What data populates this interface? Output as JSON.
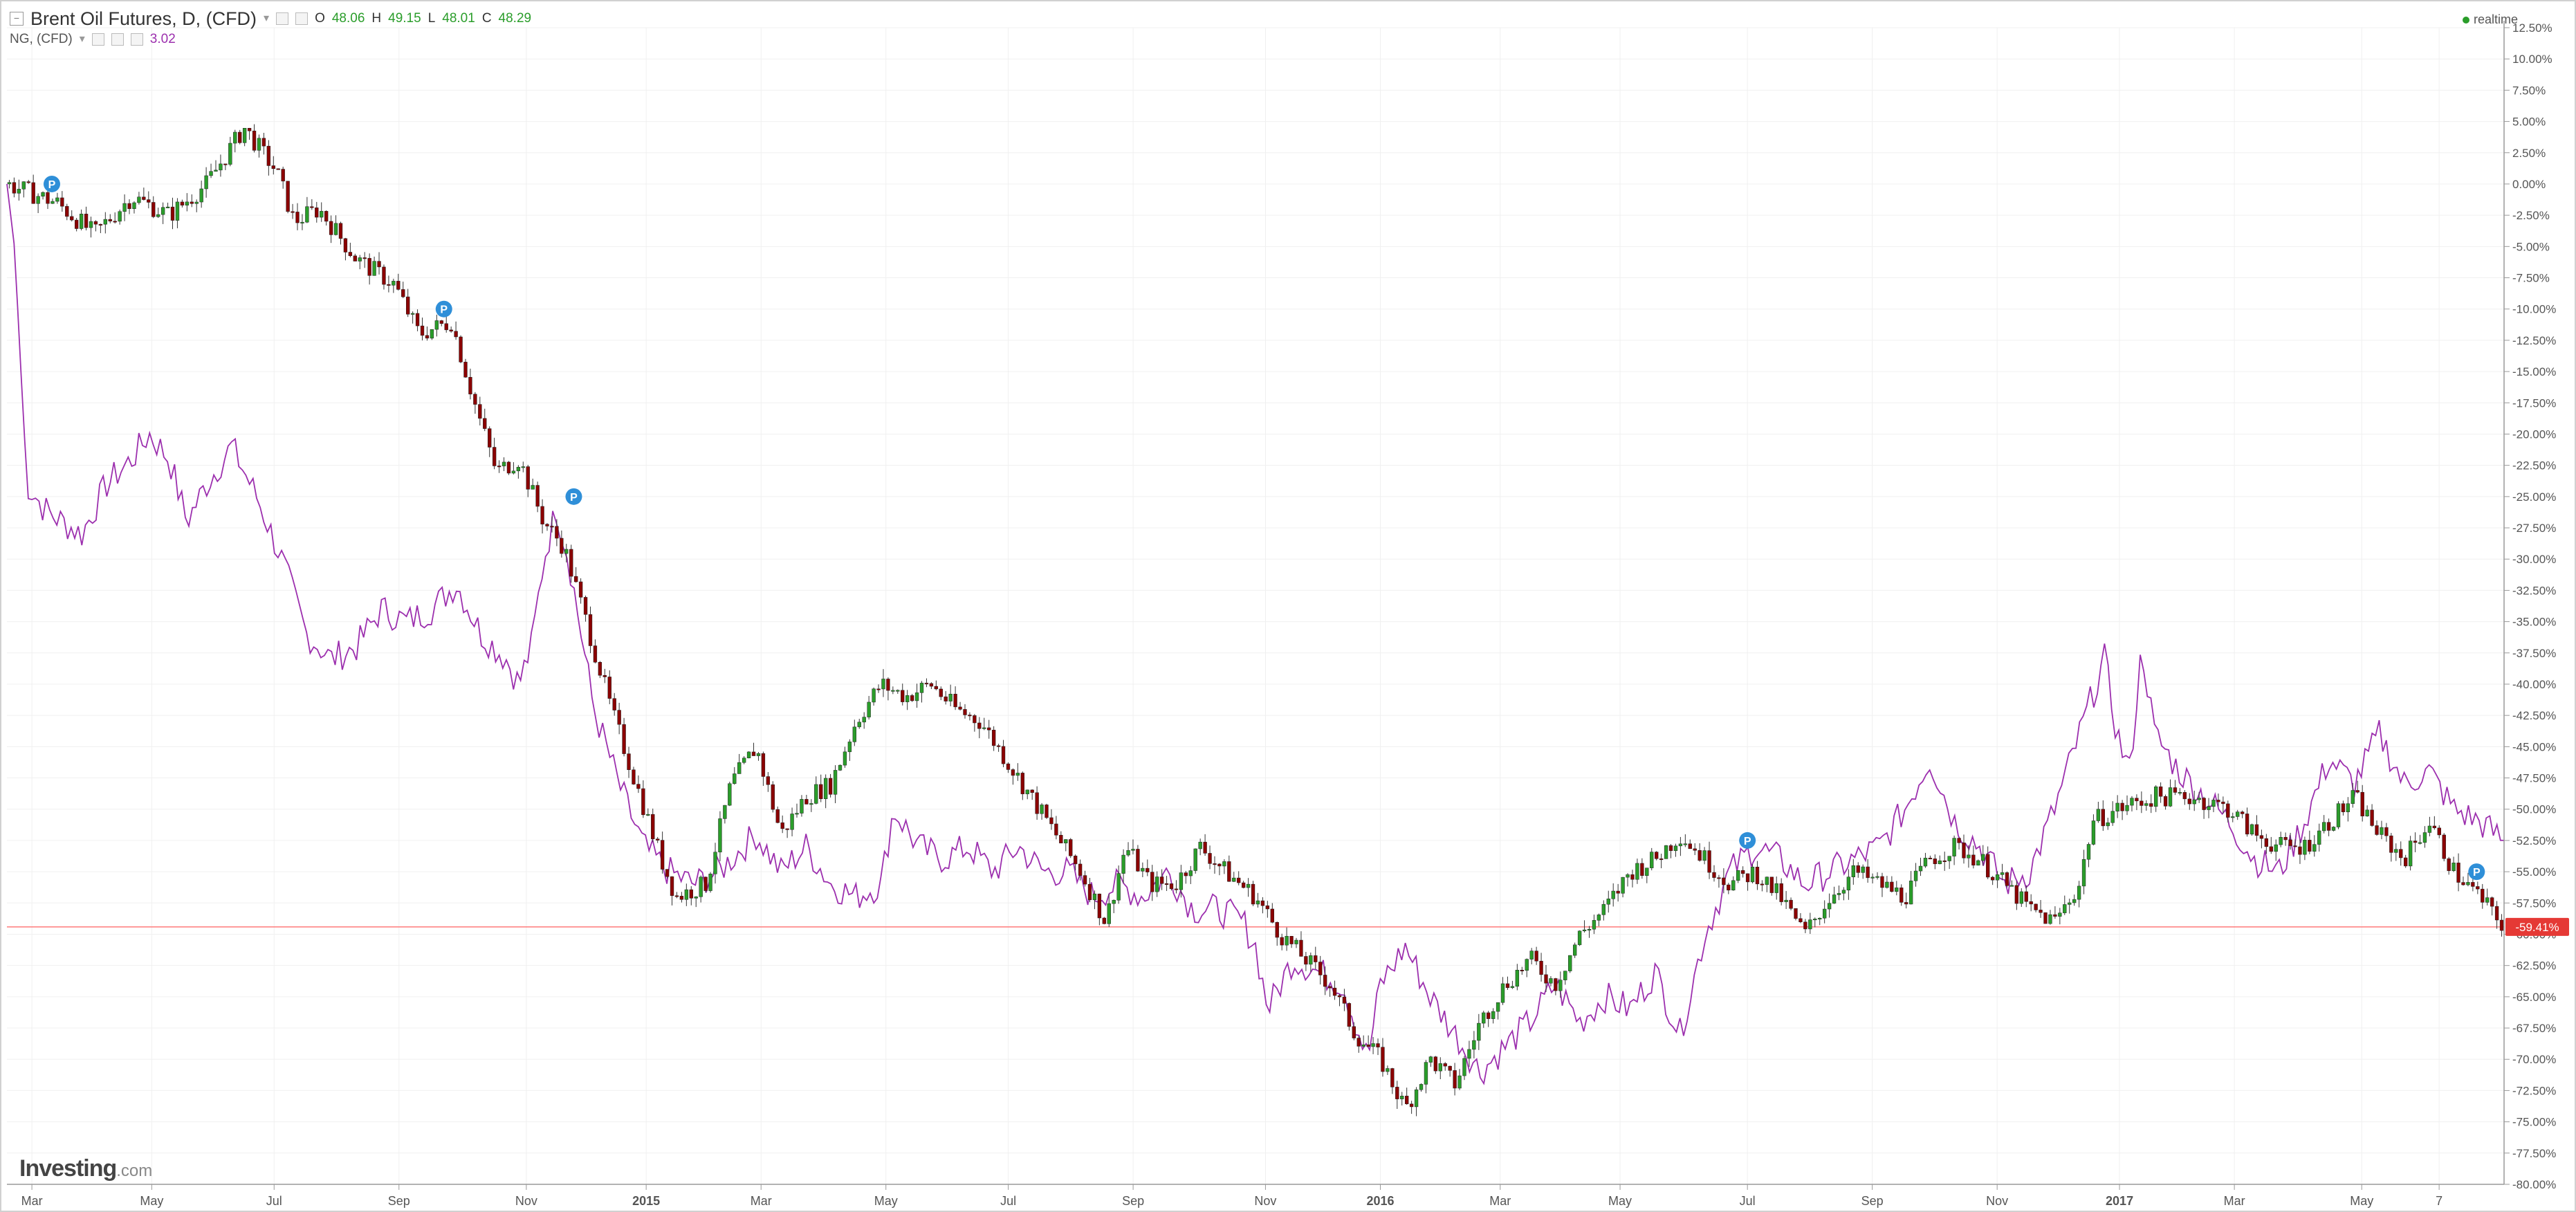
{
  "header": {
    "title": "Brent Oil Futures, D, (CFD)",
    "ohlc": [
      {
        "key": "O",
        "value": "48.06"
      },
      {
        "key": "H",
        "value": "49.15"
      },
      {
        "key": "L",
        "value": "48.01"
      },
      {
        "key": "C",
        "value": "48.29"
      }
    ],
    "compare_symbol": "NG, (CFD)",
    "compare_value": "3.02",
    "realtime_label": "realtime"
  },
  "brand": {
    "name": "Investing",
    "domain": ".com"
  },
  "colors": {
    "up": "#2a9d2a",
    "down": "#8b0000",
    "compare_line": "#9c2fae",
    "last_price_line": "#ff7a7a",
    "last_price_badge": "#e53935",
    "marker": "#2f8fd8"
  },
  "icons": {
    "marker": "circle-P-icon",
    "collapse": "minus-box-icon"
  },
  "chart_data": {
    "type": "line",
    "scale": "percent",
    "ylim": [
      -80,
      12.5
    ],
    "y_ticks": [
      "12.50%",
      "10.00%",
      "7.50%",
      "5.00%",
      "2.50%",
      "0.00%",
      "-2.50%",
      "-5.00%",
      "-7.50%",
      "-10.00%",
      "-12.50%",
      "-15.00%",
      "-17.50%",
      "-20.00%",
      "-22.50%",
      "-25.00%",
      "-27.50%",
      "-30.00%",
      "-32.50%",
      "-35.00%",
      "-37.50%",
      "-40.00%",
      "-42.50%",
      "-45.00%",
      "-47.50%",
      "-50.00%",
      "-52.50%",
      "-55.00%",
      "-57.50%",
      "-60.00%",
      "-62.50%",
      "-65.00%",
      "-67.50%",
      "-70.00%",
      "-72.50%",
      "-75.00%",
      "-77.50%",
      "-80.00%"
    ],
    "x_ticks": [
      {
        "label": "Mar",
        "t": 0.01
      },
      {
        "label": "May",
        "t": 0.058
      },
      {
        "label": "Jul",
        "t": 0.107
      },
      {
        "label": "Sep",
        "t": 0.157
      },
      {
        "label": "Nov",
        "t": 0.208
      },
      {
        "label": "2015",
        "t": 0.256
      },
      {
        "label": "Mar",
        "t": 0.302
      },
      {
        "label": "May",
        "t": 0.352
      },
      {
        "label": "Jul",
        "t": 0.401
      },
      {
        "label": "Sep",
        "t": 0.451
      },
      {
        "label": "Nov",
        "t": 0.504
      },
      {
        "label": "2016",
        "t": 0.55
      },
      {
        "label": "Mar",
        "t": 0.598
      },
      {
        "label": "May",
        "t": 0.646
      },
      {
        "label": "Jul",
        "t": 0.697
      },
      {
        "label": "Sep",
        "t": 0.747
      },
      {
        "label": "Nov",
        "t": 0.797
      },
      {
        "label": "2017",
        "t": 0.846
      },
      {
        "label": "Mar",
        "t": 0.892
      },
      {
        "label": "May",
        "t": 0.943
      },
      {
        "label": "7",
        "t": 0.974
      }
    ],
    "last_value": -59.41,
    "last_value_label": "-59.41%",
    "series": [
      {
        "name": "Brent Oil Futures, D, (CFD)",
        "style": "candlestick",
        "points": [
          [
            0.0,
            0
          ],
          [
            0.02,
            -1.5
          ],
          [
            0.035,
            -4
          ],
          [
            0.05,
            -1
          ],
          [
            0.065,
            -2.5
          ],
          [
            0.08,
            0
          ],
          [
            0.095,
            4.5
          ],
          [
            0.108,
            1
          ],
          [
            0.115,
            -3
          ],
          [
            0.125,
            -2
          ],
          [
            0.14,
            -6
          ],
          [
            0.155,
            -8
          ],
          [
            0.165,
            -12
          ],
          [
            0.178,
            -11
          ],
          [
            0.188,
            -18
          ],
          [
            0.196,
            -23
          ],
          [
            0.205,
            -22
          ],
          [
            0.215,
            -27
          ],
          [
            0.223,
            -29
          ],
          [
            0.232,
            -35
          ],
          [
            0.242,
            -42
          ],
          [
            0.252,
            -48
          ],
          [
            0.262,
            -54
          ],
          [
            0.268,
            -57
          ],
          [
            0.28,
            -56
          ],
          [
            0.29,
            -48
          ],
          [
            0.3,
            -45
          ],
          [
            0.31,
            -52
          ],
          [
            0.32,
            -49
          ],
          [
            0.33,
            -48
          ],
          [
            0.34,
            -43
          ],
          [
            0.35,
            -40
          ],
          [
            0.36,
            -41
          ],
          [
            0.37,
            -40
          ],
          [
            0.38,
            -42
          ],
          [
            0.39,
            -43
          ],
          [
            0.4,
            -46
          ],
          [
            0.41,
            -49
          ],
          [
            0.42,
            -52
          ],
          [
            0.43,
            -55
          ],
          [
            0.44,
            -59
          ],
          [
            0.448,
            -53
          ],
          [
            0.458,
            -56
          ],
          [
            0.468,
            -56
          ],
          [
            0.478,
            -53
          ],
          [
            0.488,
            -55
          ],
          [
            0.5,
            -57
          ],
          [
            0.51,
            -60
          ],
          [
            0.52,
            -62
          ],
          [
            0.53,
            -64
          ],
          [
            0.54,
            -68
          ],
          [
            0.55,
            -70
          ],
          [
            0.56,
            -74
          ],
          [
            0.57,
            -70
          ],
          [
            0.58,
            -72
          ],
          [
            0.59,
            -67
          ],
          [
            0.6,
            -64
          ],
          [
            0.61,
            -62
          ],
          [
            0.62,
            -64
          ],
          [
            0.63,
            -60
          ],
          [
            0.64,
            -58
          ],
          [
            0.65,
            -55
          ],
          [
            0.66,
            -54
          ],
          [
            0.67,
            -52
          ],
          [
            0.68,
            -54
          ],
          [
            0.69,
            -56
          ],
          [
            0.7,
            -55
          ],
          [
            0.71,
            -57
          ],
          [
            0.72,
            -60
          ],
          [
            0.73,
            -57
          ],
          [
            0.74,
            -55
          ],
          [
            0.75,
            -56
          ],
          [
            0.76,
            -57
          ],
          [
            0.77,
            -54
          ],
          [
            0.78,
            -53
          ],
          [
            0.79,
            -54
          ],
          [
            0.8,
            -56
          ],
          [
            0.81,
            -58
          ],
          [
            0.82,
            -59
          ],
          [
            0.83,
            -56
          ],
          [
            0.835,
            -51
          ],
          [
            0.845,
            -50
          ],
          [
            0.86,
            -49
          ],
          [
            0.875,
            -49
          ],
          [
            0.89,
            -50
          ],
          [
            0.9,
            -52
          ],
          [
            0.91,
            -53
          ],
          [
            0.92,
            -53
          ],
          [
            0.93,
            -51
          ],
          [
            0.94,
            -49
          ],
          [
            0.95,
            -52
          ],
          [
            0.96,
            -54
          ],
          [
            0.97,
            -51
          ],
          [
            0.98,
            -55
          ],
          [
            0.99,
            -57
          ],
          [
            1.0,
            -59.41
          ]
        ]
      },
      {
        "name": "NG, (CFD)",
        "value": "3.02",
        "style": "line",
        "points": [
          [
            0.0,
            0
          ],
          [
            0.003,
            -5
          ],
          [
            0.008,
            -24
          ],
          [
            0.015,
            -26
          ],
          [
            0.022,
            -27
          ],
          [
            0.03,
            -28
          ],
          [
            0.04,
            -24
          ],
          [
            0.05,
            -22
          ],
          [
            0.057,
            -20
          ],
          [
            0.065,
            -22
          ],
          [
            0.072,
            -27
          ],
          [
            0.08,
            -24
          ],
          [
            0.09,
            -21
          ],
          [
            0.1,
            -25
          ],
          [
            0.11,
            -30
          ],
          [
            0.12,
            -36
          ],
          [
            0.13,
            -38
          ],
          [
            0.14,
            -37
          ],
          [
            0.15,
            -34
          ],
          [
            0.16,
            -35
          ],
          [
            0.17,
            -34
          ],
          [
            0.18,
            -32
          ],
          [
            0.19,
            -36
          ],
          [
            0.2,
            -38
          ],
          [
            0.205,
            -40
          ],
          [
            0.21,
            -37
          ],
          [
            0.215,
            -30
          ],
          [
            0.22,
            -26
          ],
          [
            0.225,
            -30
          ],
          [
            0.235,
            -42
          ],
          [
            0.245,
            -48
          ],
          [
            0.255,
            -53
          ],
          [
            0.265,
            -55
          ],
          [
            0.275,
            -56
          ],
          [
            0.285,
            -55
          ],
          [
            0.3,
            -52
          ],
          [
            0.31,
            -55
          ],
          [
            0.32,
            -53
          ],
          [
            0.33,
            -56
          ],
          [
            0.34,
            -57
          ],
          [
            0.35,
            -56
          ],
          [
            0.355,
            -50
          ],
          [
            0.365,
            -53
          ],
          [
            0.375,
            -54
          ],
          [
            0.385,
            -53
          ],
          [
            0.395,
            -55
          ],
          [
            0.405,
            -53
          ],
          [
            0.415,
            -55
          ],
          [
            0.425,
            -55
          ],
          [
            0.435,
            -57
          ],
          [
            0.445,
            -56
          ],
          [
            0.455,
            -57
          ],
          [
            0.465,
            -55
          ],
          [
            0.475,
            -58
          ],
          [
            0.485,
            -58
          ],
          [
            0.495,
            -59
          ],
          [
            0.5,
            -61
          ],
          [
            0.505,
            -66
          ],
          [
            0.515,
            -62
          ],
          [
            0.525,
            -63
          ],
          [
            0.535,
            -64
          ],
          [
            0.545,
            -70
          ],
          [
            0.55,
            -64
          ],
          [
            0.56,
            -61
          ],
          [
            0.57,
            -65
          ],
          [
            0.58,
            -68
          ],
          [
            0.59,
            -71
          ],
          [
            0.6,
            -69
          ],
          [
            0.61,
            -67
          ],
          [
            0.62,
            -64
          ],
          [
            0.63,
            -67
          ],
          [
            0.64,
            -65
          ],
          [
            0.65,
            -66
          ],
          [
            0.66,
            -63
          ],
          [
            0.67,
            -68
          ],
          [
            0.68,
            -60
          ],
          [
            0.69,
            -55
          ],
          [
            0.7,
            -53
          ],
          [
            0.71,
            -54
          ],
          [
            0.72,
            -56
          ],
          [
            0.73,
            -55
          ],
          [
            0.74,
            -54
          ],
          [
            0.75,
            -53
          ],
          [
            0.76,
            -50
          ],
          [
            0.77,
            -46
          ],
          [
            0.78,
            -51
          ],
          [
            0.79,
            -53
          ],
          [
            0.8,
            -56
          ],
          [
            0.81,
            -55
          ],
          [
            0.82,
            -50
          ],
          [
            0.83,
            -44
          ],
          [
            0.84,
            -38
          ],
          [
            0.845,
            -44
          ],
          [
            0.85,
            -47
          ],
          [
            0.855,
            -37
          ],
          [
            0.86,
            -44
          ],
          [
            0.87,
            -47
          ],
          [
            0.88,
            -49
          ],
          [
            0.89,
            -51
          ],
          [
            0.9,
            -54
          ],
          [
            0.91,
            -55
          ],
          [
            0.92,
            -51
          ],
          [
            0.93,
            -46
          ],
          [
            0.94,
            -48
          ],
          [
            0.95,
            -44
          ],
          [
            0.96,
            -48
          ],
          [
            0.97,
            -47
          ],
          [
            0.98,
            -50
          ],
          [
            0.99,
            -51
          ],
          [
            1.0,
            -52.5
          ]
        ]
      }
    ],
    "annotations": [
      {
        "label": "P",
        "t": 0.018,
        "y": 0.0
      },
      {
        "label": "P",
        "t": 0.175,
        "y": -10
      },
      {
        "label": "P",
        "t": 0.227,
        "y": -25
      },
      {
        "label": "P",
        "t": 0.697,
        "y": -52.5
      },
      {
        "label": "P",
        "t": 0.989,
        "y": -55
      }
    ]
  }
}
